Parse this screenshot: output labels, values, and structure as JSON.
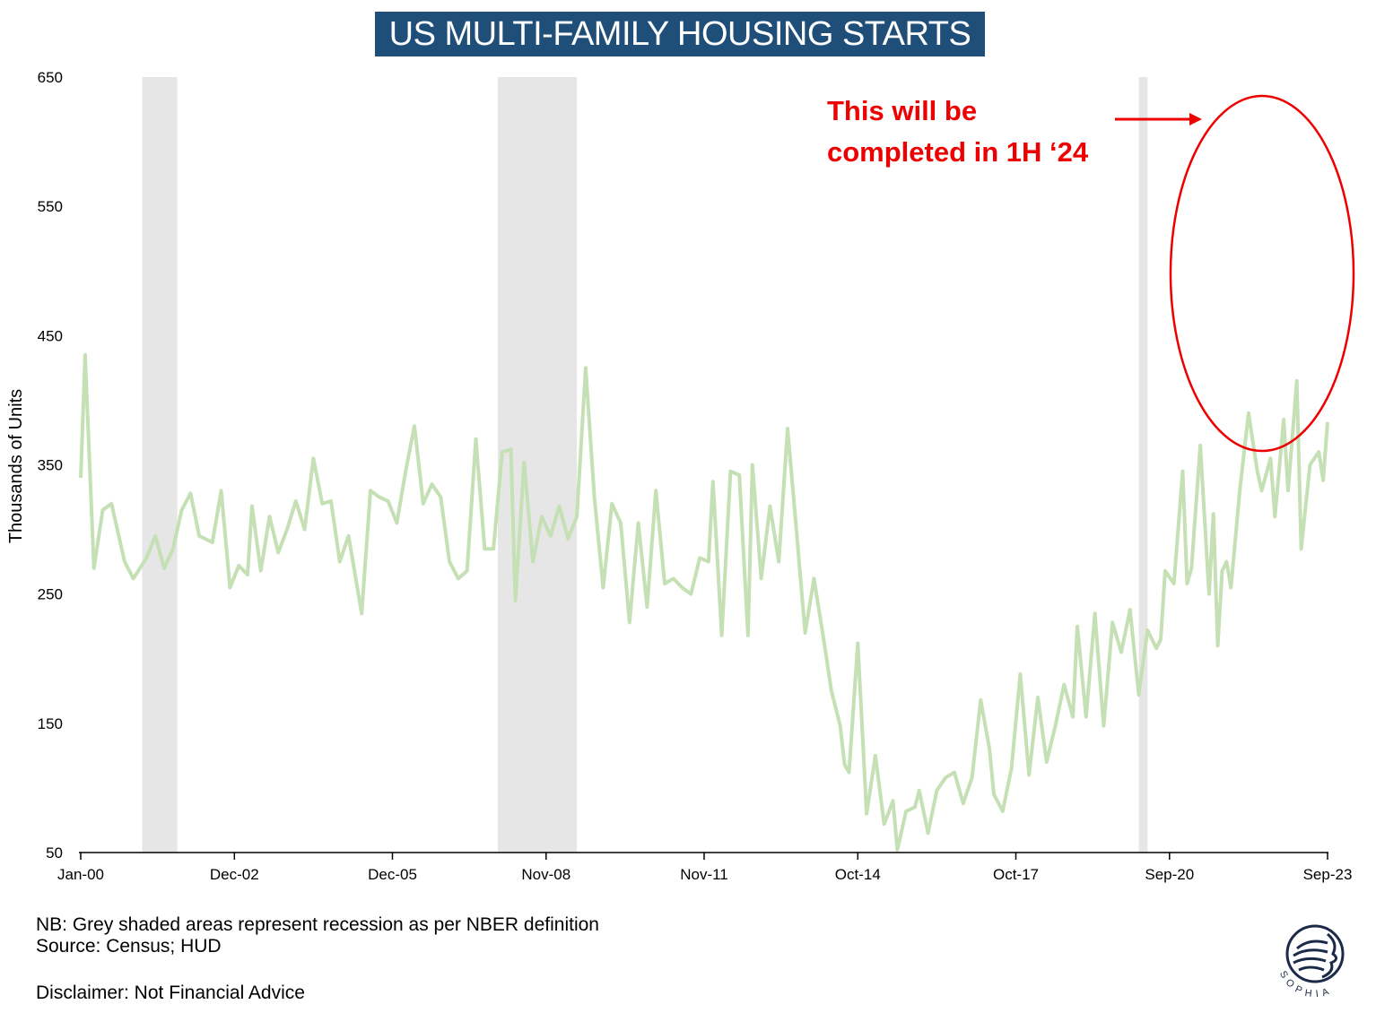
{
  "chart_data": {
    "type": "line",
    "title": "US MULTI-FAMILY HOUSING STARTS",
    "ylabel": "Thousands of Units",
    "xlabel": "",
    "ylim": [
      50,
      650
    ],
    "yticks": [
      50,
      150,
      250,
      350,
      450,
      550,
      650
    ],
    "xticks": [
      "Jan-00",
      "Dec-02",
      "Dec-05",
      "Nov-08",
      "Nov-11",
      "Oct-14",
      "Oct-17",
      "Sep-20",
      "Sep-23"
    ],
    "x_range": [
      "Jan-00",
      "Sep-23"
    ],
    "grid": false,
    "line_color": "#c5e0b4",
    "recession_color": "#e6e6e6",
    "recessions": [
      {
        "start": "Mar-01",
        "end": "Nov-01"
      },
      {
        "start": "Dec-07",
        "end": "Jun-09"
      },
      {
        "start": "Feb-20",
        "end": "Apr-20"
      }
    ],
    "series": [
      {
        "points": [
          [
            "Jan-00",
            340
          ],
          [
            "Feb-00",
            435
          ],
          [
            "Apr-00",
            270
          ],
          [
            "Jun-00",
            315
          ],
          [
            "Aug-00",
            320
          ],
          [
            "Nov-00",
            275
          ],
          [
            "Jan-01",
            262
          ],
          [
            "Apr-01",
            278
          ],
          [
            "Jun-01",
            295
          ],
          [
            "Aug-01",
            270
          ],
          [
            "Oct-01",
            285
          ],
          [
            "Dec-01",
            315
          ],
          [
            "Feb-02",
            328
          ],
          [
            "Apr-02",
            295
          ],
          [
            "Jul-02",
            290
          ],
          [
            "Sep-02",
            330
          ],
          [
            "Nov-02",
            255
          ],
          [
            "Jan-03",
            272
          ],
          [
            "Mar-03",
            265
          ],
          [
            "Apr-03",
            318
          ],
          [
            "Jun-03",
            268
          ],
          [
            "Aug-03",
            310
          ],
          [
            "Oct-03",
            282
          ],
          [
            "Dec-03",
            300
          ],
          [
            "Feb-04",
            322
          ],
          [
            "Apr-04",
            300
          ],
          [
            "Jun-04",
            355
          ],
          [
            "Aug-04",
            320
          ],
          [
            "Oct-04",
            322
          ],
          [
            "Dec-04",
            275
          ],
          [
            "Feb-05",
            295
          ],
          [
            "May-05",
            235
          ],
          [
            "Jul-05",
            330
          ],
          [
            "Sep-05",
            325
          ],
          [
            "Nov-05",
            322
          ],
          [
            "Jan-06",
            305
          ],
          [
            "Mar-06",
            345
          ],
          [
            "May-06",
            380
          ],
          [
            "Jul-06",
            320
          ],
          [
            "Sep-06",
            335
          ],
          [
            "Nov-06",
            325
          ],
          [
            "Jan-07",
            275
          ],
          [
            "Mar-07",
            262
          ],
          [
            "May-07",
            268
          ],
          [
            "Jul-07",
            370
          ],
          [
            "Sep-07",
            285
          ],
          [
            "Nov-07",
            285
          ],
          [
            "Jan-08",
            360
          ],
          [
            "Mar-08",
            362
          ],
          [
            "Apr-08",
            245
          ],
          [
            "Jun-08",
            352
          ],
          [
            "Aug-08",
            275
          ],
          [
            "Oct-08",
            310
          ],
          [
            "Dec-08",
            295
          ],
          [
            "Feb-09",
            318
          ],
          [
            "Apr-09",
            293
          ],
          [
            "Jun-09",
            310
          ],
          [
            "Aug-09",
            425
          ],
          [
            "Oct-09",
            325
          ],
          [
            "Dec-09",
            255
          ],
          [
            "Feb-10",
            320
          ],
          [
            "Apr-10",
            305
          ],
          [
            "Jun-10",
            228
          ],
          [
            "Aug-10",
            305
          ],
          [
            "Oct-10",
            240
          ],
          [
            "Dec-10",
            330
          ],
          [
            "Feb-11",
            258
          ],
          [
            "Apr-11",
            262
          ],
          [
            "Jun-11",
            255
          ],
          [
            "Aug-11",
            250
          ],
          [
            "Oct-11",
            278
          ],
          [
            "Dec-11",
            275
          ],
          [
            "Jan-12",
            337
          ],
          [
            "Mar-12",
            218
          ],
          [
            "May-12",
            345
          ],
          [
            "Jul-12",
            342
          ],
          [
            "Sep-12",
            218
          ],
          [
            "Oct-12",
            350
          ],
          [
            "Dec-12",
            262
          ],
          [
            "Feb-13",
            318
          ],
          [
            "Apr-13",
            275
          ],
          [
            "Jun-13",
            378
          ],
          [
            "Aug-13",
            300
          ],
          [
            "Oct-13",
            220
          ],
          [
            "Dec-13",
            262
          ],
          [
            "Feb-14",
            220
          ],
          [
            "Apr-14",
            175
          ],
          [
            "Jun-14",
            148
          ],
          [
            "Jul-14",
            118
          ],
          [
            "Aug-14",
            112
          ],
          [
            "Oct-14",
            212
          ],
          [
            "Dec-14",
            80
          ],
          [
            "Feb-15",
            125
          ],
          [
            "Apr-15",
            72
          ],
          [
            "Jun-15",
            90
          ],
          [
            "Jul-15",
            52
          ],
          [
            "Sep-15",
            82
          ],
          [
            "Nov-15",
            85
          ],
          [
            "Dec-15",
            98
          ],
          [
            "Feb-16",
            65
          ],
          [
            "Apr-16",
            98
          ],
          [
            "Jun-16",
            108
          ],
          [
            "Aug-16",
            112
          ],
          [
            "Oct-16",
            88
          ],
          [
            "Dec-16",
            108
          ],
          [
            "Feb-17",
            168
          ],
          [
            "Apr-17",
            130
          ],
          [
            "May-17",
            95
          ],
          [
            "Jul-17",
            82
          ],
          [
            "Sep-17",
            115
          ],
          [
            "Nov-17",
            188
          ],
          [
            "Jan-18",
            110
          ],
          [
            "Mar-18",
            170
          ],
          [
            "May-18",
            120
          ],
          [
            "Jul-18",
            148
          ],
          [
            "Sep-18",
            180
          ],
          [
            "Nov-18",
            155
          ],
          [
            "Dec-18",
            225
          ],
          [
            "Feb-19",
            155
          ],
          [
            "Apr-19",
            235
          ],
          [
            "Jun-19",
            148
          ],
          [
            "Aug-19",
            228
          ],
          [
            "Oct-19",
            205
          ],
          [
            "Dec-19",
            238
          ],
          [
            "Feb-20",
            172
          ],
          [
            "Apr-20",
            222
          ],
          [
            "Jun-20",
            208
          ],
          [
            "Jul-20",
            215
          ],
          [
            "Aug-20",
            268
          ],
          [
            "Oct-20",
            258
          ],
          [
            "Dec-20",
            345
          ],
          [
            "Jan-21",
            258
          ],
          [
            "Feb-21",
            270
          ],
          [
            "Apr-21",
            365
          ],
          [
            "Jun-21",
            250
          ],
          [
            "Jul-21",
            312
          ],
          [
            "Aug-21",
            210
          ],
          [
            "Sep-21",
            268
          ],
          [
            "Oct-21",
            275
          ],
          [
            "Nov-21",
            255
          ],
          [
            "Jan-22",
            330
          ],
          [
            "Mar-22",
            390
          ],
          [
            "May-22",
            345
          ],
          [
            "Jun-22",
            330
          ],
          [
            "Aug-22",
            355
          ],
          [
            "Sep-22",
            310
          ],
          [
            "Nov-22",
            385
          ],
          [
            "Dec-22",
            330
          ],
          [
            "Feb-23",
            415
          ],
          [
            "Mar-23",
            285
          ],
          [
            "May-23",
            350
          ],
          [
            "Jul-23",
            360
          ],
          [
            "Aug-23",
            338
          ],
          [
            "Sep-23",
            383
          ]
        ]
      }
    ],
    "annotation": {
      "lines": [
        "This will be",
        "completed in 1H ‘24"
      ],
      "color": "#ee0000"
    }
  },
  "footer": {
    "note": "NB: Grey shaded areas represent recession as per NBER definition",
    "source": "Source: Census; HUD",
    "disclaimer": "Disclaimer: Not Financial Advice"
  },
  "logo": {
    "text": "SOPHIA",
    "icon": "sophia-logo-icon"
  }
}
